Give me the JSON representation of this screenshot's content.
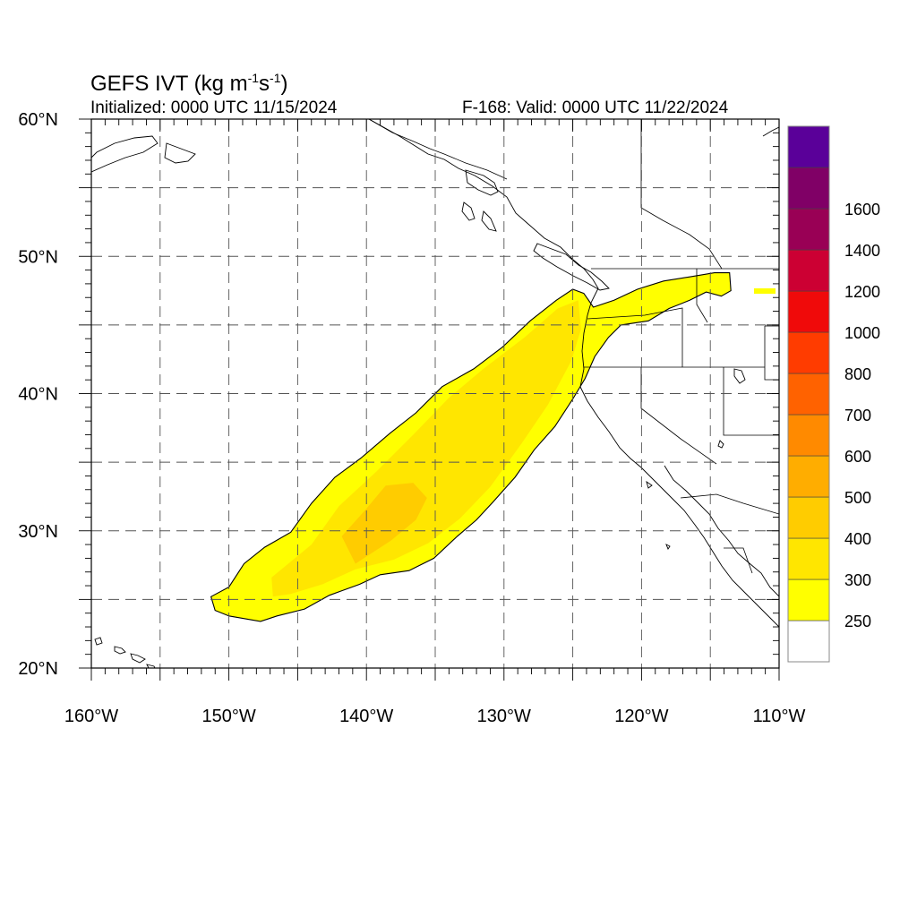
{
  "title": {
    "prefix": "GEFS IVT (kg m",
    "exp1": "-1",
    "mid": "s",
    "exp2": "-1",
    "suffix": ")"
  },
  "initialized": "Initialized: 0000 UTC 11/15/2024",
  "valid": "F-168: Valid: 0000 UTC 11/22/2024",
  "map": {
    "projection": "cylindrical equidistant",
    "lon_range": [
      -160,
      -110
    ],
    "lat_range": [
      20,
      60
    ],
    "lon_ticks": [
      {
        "value": -160,
        "label": "160°W"
      },
      {
        "value": -150,
        "label": "150°W"
      },
      {
        "value": -140,
        "label": "140°W"
      },
      {
        "value": -130,
        "label": "130°W"
      },
      {
        "value": -120,
        "label": "120°W"
      },
      {
        "value": -110,
        "label": "110°W"
      }
    ],
    "lat_ticks": [
      {
        "value": 60,
        "label": "60°N"
      },
      {
        "value": 50,
        "label": "50°N"
      },
      {
        "value": 40,
        "label": "40°N"
      },
      {
        "value": 30,
        "label": "30°N"
      },
      {
        "value": 20,
        "label": "20°N"
      }
    ],
    "grid": "dashed every 5°",
    "ivt_plume": {
      "outline_250": [
        [
          -151.3,
          25.2
        ],
        [
          -150.0,
          25.9
        ],
        [
          -148.9,
          27.6
        ],
        [
          -147.4,
          28.8
        ],
        [
          -145.5,
          29.9
        ],
        [
          -144.0,
          32.0
        ],
        [
          -142.3,
          33.9
        ],
        [
          -140.4,
          35.3
        ],
        [
          -138.3,
          37.1
        ],
        [
          -136.4,
          38.6
        ],
        [
          -134.5,
          40.5
        ],
        [
          -132.2,
          41.8
        ],
        [
          -130.1,
          43.4
        ],
        [
          -128.1,
          45.3
        ],
        [
          -126.2,
          46.8
        ],
        [
          -125.0,
          47.6
        ],
        [
          -124.2,
          47.3
        ],
        [
          -123.5,
          46.3
        ],
        [
          -122.0,
          46.8
        ],
        [
          -120.3,
          47.6
        ],
        [
          -118.4,
          48.2
        ],
        [
          -116.5,
          48.5
        ],
        [
          -114.7,
          48.8
        ],
        [
          -113.6,
          48.8
        ],
        [
          -113.5,
          47.5
        ],
        [
          -114.2,
          47.1
        ],
        [
          -115.3,
          47.4
        ],
        [
          -116.5,
          46.8
        ],
        [
          -118.0,
          46.2
        ],
        [
          -119.5,
          45.3
        ],
        [
          -121.5,
          45.0
        ],
        [
          -122.4,
          44.1
        ],
        [
          -123.4,
          42.7
        ],
        [
          -124.1,
          41.1
        ],
        [
          -125.0,
          39.6
        ],
        [
          -126.3,
          37.6
        ],
        [
          -127.8,
          35.9
        ],
        [
          -129.2,
          33.9
        ],
        [
          -130.8,
          32.1
        ],
        [
          -132.0,
          30.8
        ],
        [
          -133.4,
          29.6
        ],
        [
          -135.1,
          28.0
        ],
        [
          -136.9,
          27.1
        ],
        [
          -139.0,
          26.8
        ],
        [
          -140.5,
          26.1
        ],
        [
          -142.7,
          25.3
        ],
        [
          -144.5,
          24.3
        ],
        [
          -146.5,
          23.8
        ],
        [
          -147.7,
          23.4
        ],
        [
          -150.0,
          23.8
        ],
        [
          -151.0,
          24.2
        ]
      ],
      "core_300": [
        [
          -146.8,
          25.2
        ],
        [
          -146.9,
          26.6
        ],
        [
          -144.0,
          29.0
        ],
        [
          -142.0,
          31.8
        ],
        [
          -139.3,
          34.3
        ],
        [
          -136.6,
          37.0
        ],
        [
          -134.0,
          39.7
        ],
        [
          -131.5,
          41.8
        ],
        [
          -128.5,
          44.1
        ],
        [
          -126.1,
          46.2
        ],
        [
          -124.6,
          46.8
        ],
        [
          -124.4,
          44.7
        ],
        [
          -125.1,
          42.4
        ],
        [
          -126.8,
          39.2
        ],
        [
          -128.7,
          36.4
        ],
        [
          -131.0,
          33.2
        ],
        [
          -133.2,
          30.9
        ],
        [
          -135.5,
          29.1
        ],
        [
          -138.0,
          27.9
        ],
        [
          -140.8,
          27.2
        ],
        [
          -143.2,
          26.1
        ],
        [
          -145.5,
          25.4
        ]
      ],
      "core_400": [
        [
          -140.8,
          27.6
        ],
        [
          -141.8,
          29.6
        ],
        [
          -140.1,
          31.5
        ],
        [
          -138.6,
          33.3
        ],
        [
          -136.6,
          33.5
        ],
        [
          -135.6,
          32.4
        ],
        [
          -136.4,
          30.8
        ],
        [
          -138.2,
          29.3
        ]
      ]
    }
  },
  "colorbar": {
    "colors": [
      "#ffffff",
      "#ffff00",
      "#ffe600",
      "#ffcc00",
      "#ffad00",
      "#ff8a00",
      "#ff6200",
      "#ff3c00",
      "#f00a0a",
      "#cc0033",
      "#990055",
      "#800066",
      "#5a0099"
    ],
    "labels": [
      "250",
      "300",
      "400",
      "500",
      "600",
      "700",
      "800",
      "1000",
      "1200",
      "1400",
      "1600"
    ]
  }
}
